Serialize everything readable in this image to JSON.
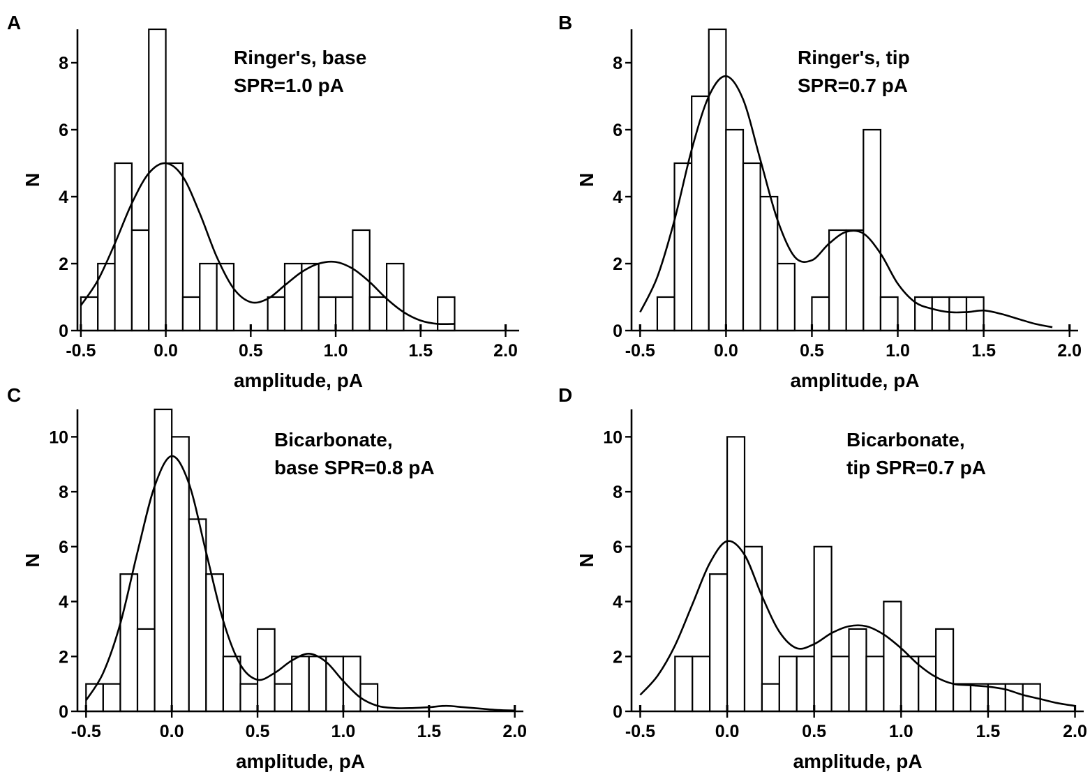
{
  "chart_data": [
    {
      "panel_label": "A",
      "type": "bar",
      "annotation": [
        "Ringer's, base",
        "SPR=1.0 pA"
      ],
      "xlabel": "amplitude, pA",
      "ylabel": "N",
      "xlim": [
        -0.52,
        2.08
      ],
      "ylim": [
        0,
        9
      ],
      "xticks": [
        -0.5,
        0.0,
        0.5,
        1.0,
        1.5,
        2.0
      ],
      "xtick_labels": [
        "-0.5",
        "0.0",
        "0.5",
        "1.0",
        "1.5",
        "2.0"
      ],
      "yticks": [
        0,
        2,
        4,
        6,
        8
      ],
      "ytick_labels": [
        "0",
        "2",
        "4",
        "6",
        "8"
      ],
      "bin_width": 0.1,
      "bin_centers": [
        -0.45,
        -0.35,
        -0.25,
        -0.15,
        -0.05,
        0.05,
        0.15,
        0.25,
        0.35,
        0.45,
        0.55,
        0.65,
        0.75,
        0.85,
        0.95,
        1.05,
        1.15,
        1.25,
        1.35,
        1.45,
        1.55,
        1.65
      ],
      "counts": [
        1,
        2,
        5,
        3,
        9,
        5,
        1,
        2,
        2,
        0,
        0,
        1,
        2,
        2,
        1,
        1,
        3,
        1,
        2,
        0,
        0,
        1
      ],
      "fit": {
        "x": [
          -0.5,
          -0.4,
          -0.3,
          -0.2,
          -0.1,
          0.0,
          0.1,
          0.2,
          0.3,
          0.4,
          0.5,
          0.6,
          0.7,
          0.8,
          0.9,
          1.0,
          1.1,
          1.2,
          1.3,
          1.4,
          1.5,
          1.6,
          1.7
        ],
        "y": [
          0.75,
          1.5,
          2.6,
          3.8,
          4.7,
          5.0,
          4.6,
          3.5,
          2.2,
          1.25,
          0.85,
          0.95,
          1.35,
          1.75,
          2.0,
          2.05,
          1.85,
          1.45,
          0.95,
          0.55,
          0.3,
          0.2,
          0.2
        ]
      }
    },
    {
      "panel_label": "B",
      "type": "bar",
      "annotation": [
        "Ringer's, tip",
        "SPR=0.7 pA"
      ],
      "xlabel": "amplitude, pA",
      "ylabel": "N",
      "xlim": [
        -0.55,
        2.05
      ],
      "ylim": [
        0,
        9
      ],
      "xticks": [
        -0.5,
        0.0,
        0.5,
        1.0,
        1.5,
        2.0
      ],
      "xtick_labels": [
        "-0.5",
        "0.0",
        "0.5",
        "1.0",
        "1.5",
        "2.0"
      ],
      "yticks": [
        0,
        2,
        4,
        6,
        8
      ],
      "ytick_labels": [
        "0",
        "2",
        "4",
        "6",
        "8"
      ],
      "bin_width": 0.1,
      "bin_centers": [
        -0.35,
        -0.25,
        -0.15,
        -0.05,
        0.05,
        0.15,
        0.25,
        0.35,
        0.45,
        0.55,
        0.65,
        0.75,
        0.85,
        0.95,
        1.05,
        1.15,
        1.25,
        1.35,
        1.45
      ],
      "counts": [
        1,
        5,
        7,
        9,
        6,
        5,
        4,
        2,
        0,
        1,
        3,
        3,
        6,
        1,
        0,
        1,
        1,
        1,
        1
      ],
      "fit": {
        "x": [
          -0.5,
          -0.4,
          -0.3,
          -0.2,
          -0.1,
          0.0,
          0.1,
          0.2,
          0.3,
          0.4,
          0.5,
          0.6,
          0.7,
          0.8,
          0.9,
          1.0,
          1.1,
          1.2,
          1.3,
          1.4,
          1.5,
          1.6,
          1.7,
          1.8,
          1.9
        ],
        "y": [
          0.55,
          1.6,
          3.3,
          5.4,
          7.0,
          7.6,
          6.9,
          5.1,
          3.3,
          2.2,
          2.1,
          2.6,
          2.95,
          2.9,
          2.3,
          1.4,
          0.85,
          0.65,
          0.55,
          0.55,
          0.6,
          0.5,
          0.35,
          0.2,
          0.1
        ]
      }
    },
    {
      "panel_label": "C",
      "type": "bar",
      "annotation": [
        "Bicarbonate,",
        "base SPR=0.8 pA"
      ],
      "xlabel": "amplitude, pA",
      "ylabel": "N",
      "xlim": [
        -0.55,
        2.05
      ],
      "ylim": [
        0,
        11
      ],
      "xticks": [
        -0.5,
        0.0,
        0.5,
        1.0,
        1.5,
        2.0
      ],
      "xtick_labels": [
        "-0.5",
        "0.0",
        "0.5",
        "1.0",
        "1.5",
        "2.0"
      ],
      "yticks": [
        0,
        2,
        4,
        6,
        8,
        10
      ],
      "ytick_labels": [
        "0",
        "2",
        "4",
        "6",
        "8",
        "10"
      ],
      "bin_width": 0.1,
      "bin_centers": [
        -0.45,
        -0.35,
        -0.25,
        -0.15,
        -0.05,
        0.05,
        0.15,
        0.25,
        0.35,
        0.45,
        0.55,
        0.65,
        0.75,
        0.85,
        0.95,
        1.05,
        1.15
      ],
      "counts": [
        1,
        1,
        5,
        3,
        11,
        10,
        7,
        5,
        2,
        1,
        3,
        1,
        2,
        2,
        2,
        2,
        1
      ],
      "fit": {
        "x": [
          -0.5,
          -0.4,
          -0.3,
          -0.2,
          -0.1,
          0.0,
          0.1,
          0.2,
          0.3,
          0.4,
          0.5,
          0.6,
          0.7,
          0.8,
          0.9,
          1.0,
          1.1,
          1.2,
          1.3,
          1.4,
          1.5,
          1.6,
          1.7,
          1.8,
          1.9,
          2.0
        ],
        "y": [
          0.4,
          1.4,
          3.2,
          5.8,
          8.2,
          9.3,
          8.3,
          5.8,
          3.3,
          1.7,
          1.15,
          1.4,
          1.85,
          2.1,
          1.8,
          1.1,
          0.5,
          0.2,
          0.12,
          0.12,
          0.15,
          0.2,
          0.15,
          0.1,
          0.05,
          0.03
        ]
      }
    },
    {
      "panel_label": "D",
      "type": "bar",
      "annotation": [
        "Bicarbonate,",
        "tip SPR=0.7 pA"
      ],
      "xlabel": "amplitude, pA",
      "ylabel": "N",
      "xlim": [
        -0.55,
        2.05
      ],
      "ylim": [
        0,
        11
      ],
      "xticks": [
        -0.5,
        0.0,
        0.5,
        1.0,
        1.5,
        2.0
      ],
      "xtick_labels": [
        "-0.5",
        "0.0",
        "0.5",
        "1.0",
        "1.5",
        "2.0"
      ],
      "yticks": [
        0,
        2,
        4,
        6,
        8,
        10
      ],
      "ytick_labels": [
        "0",
        "2",
        "4",
        "6",
        "8",
        "10"
      ],
      "bin_width": 0.1,
      "bin_centers": [
        -0.25,
        -0.15,
        -0.05,
        0.05,
        0.15,
        0.25,
        0.35,
        0.45,
        0.55,
        0.65,
        0.75,
        0.85,
        0.95,
        1.05,
        1.15,
        1.25,
        1.35,
        1.45,
        1.55,
        1.65,
        1.75
      ],
      "counts": [
        2,
        2,
        5,
        10,
        6,
        1,
        2,
        2,
        6,
        2,
        3,
        2,
        4,
        2,
        2,
        3,
        1,
        1,
        1,
        1,
        1
      ],
      "fit": {
        "x": [
          -0.5,
          -0.4,
          -0.3,
          -0.2,
          -0.1,
          0.0,
          0.1,
          0.2,
          0.3,
          0.4,
          0.5,
          0.6,
          0.7,
          0.8,
          0.9,
          1.0,
          1.1,
          1.2,
          1.3,
          1.4,
          1.5,
          1.6,
          1.7,
          1.8,
          1.9,
          2.0
        ],
        "y": [
          0.6,
          1.3,
          2.4,
          3.9,
          5.4,
          6.2,
          5.7,
          4.2,
          2.9,
          2.3,
          2.45,
          2.85,
          3.1,
          3.1,
          2.8,
          2.3,
          1.7,
          1.25,
          1.0,
          0.95,
          0.9,
          0.8,
          0.6,
          0.45,
          0.3,
          0.2
        ]
      }
    }
  ]
}
